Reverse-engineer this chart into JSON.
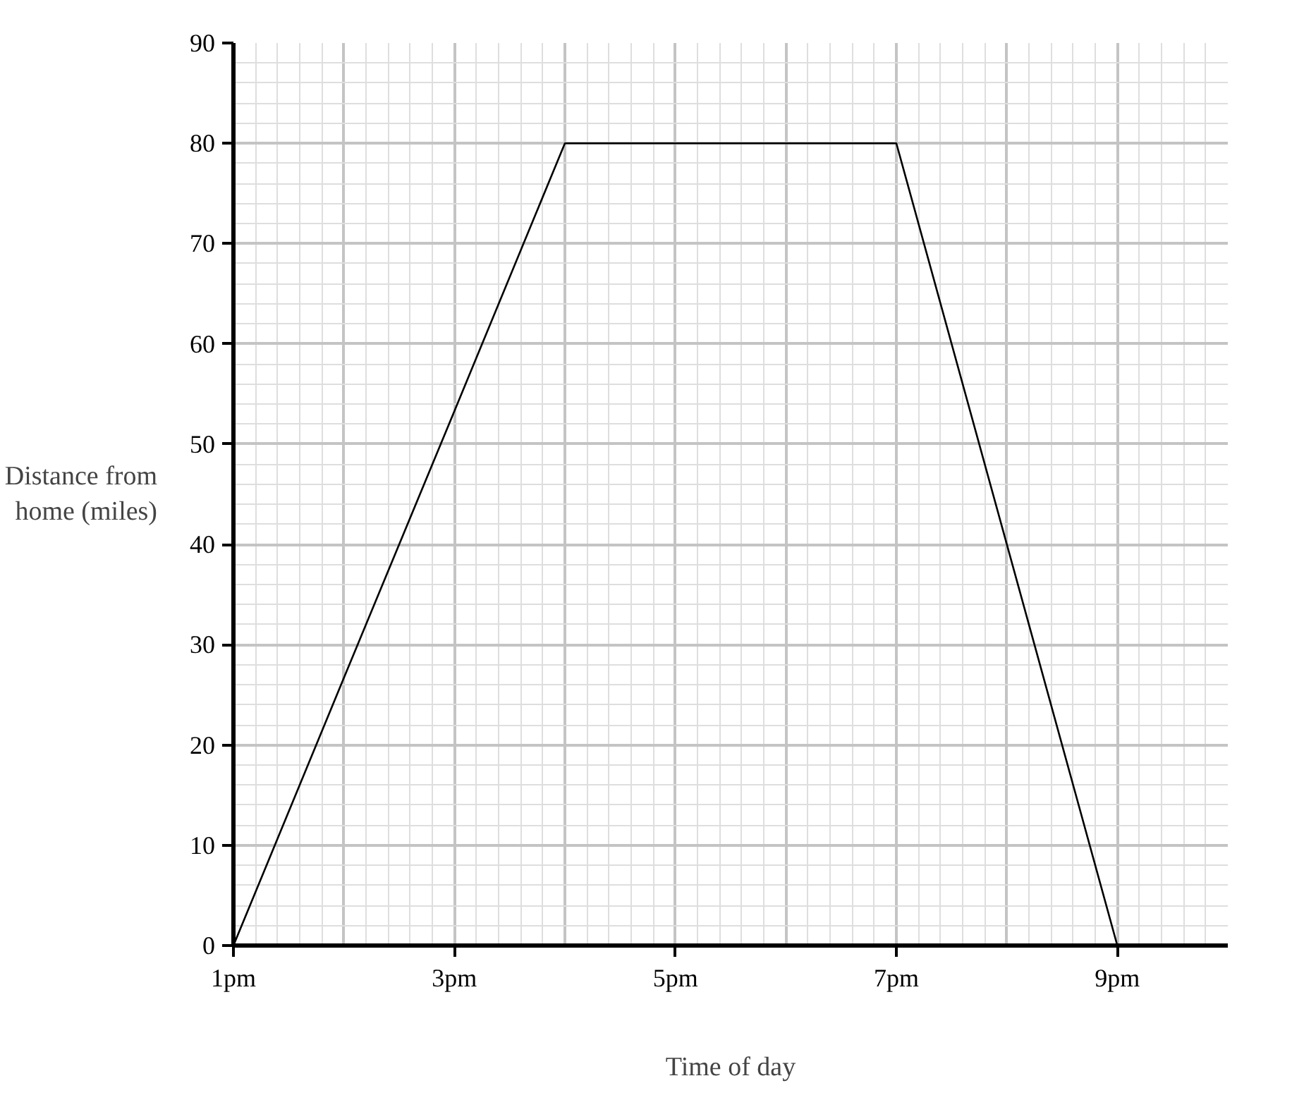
{
  "chart_data": {
    "type": "line",
    "xlabel": "Time of day",
    "ylabel": "Distance from home (miles)",
    "categories": [
      "1pm",
      null,
      "3pm",
      null,
      "5pm",
      null,
      "7pm",
      null,
      "9pm",
      null
    ],
    "series": [
      {
        "color": "#000000",
        "values": [
          0,
          26.7,
          53.3,
          80,
          80,
          80,
          80,
          40,
          0,
          null
        ]
      }
    ],
    "ylim": [
      0,
      90
    ],
    "yticks": [
      0,
      10,
      20,
      30,
      40,
      50,
      60,
      70,
      80,
      90
    ],
    "grid": true,
    "line_style": "solid",
    "marker": "none"
  }
}
